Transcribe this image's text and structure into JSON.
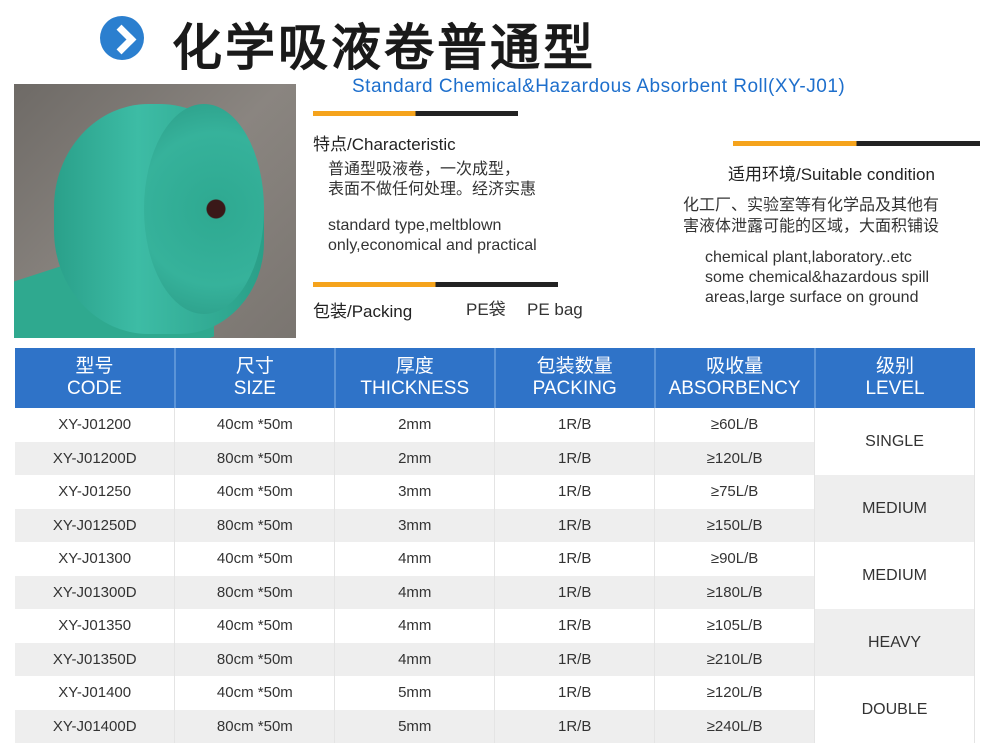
{
  "header": {
    "title": "化学吸液卷普通型",
    "subtitle": "Standard Chemical&Hazardous Absorbent Roll(XY-J01)",
    "accent": "#2b7fcf"
  },
  "characteristic": {
    "heading": "特点/Characteristic",
    "cn_lines": [
      "普通型吸液卷，一次成型，",
      "表面不做任何处理。经济实惠"
    ],
    "en_lines": [
      "standard type,meltblown",
      "only,economical and practical"
    ]
  },
  "packing": {
    "heading": "包装/Packing",
    "cn": "PE袋",
    "en": "PE bag"
  },
  "suitable": {
    "heading": "适用环境/Suitable condition",
    "cn_lines": [
      "化工厂、实验室等有化学品及其他有",
      "害液体泄露可能的区域，大面积铺设"
    ],
    "en_lines": [
      "chemical plant,laboratory..etc",
      "some chemical&hazardous spill",
      "areas,large surface on ground"
    ]
  },
  "table": {
    "headers": [
      [
        "型号",
        "CODE"
      ],
      [
        "尺寸",
        "SIZE"
      ],
      [
        "厚度",
        "THICKNESS"
      ],
      [
        "包装数量",
        "PACKING"
      ],
      [
        "吸收量",
        "ABSORBENCY"
      ],
      [
        "级别",
        "LEVEL"
      ]
    ],
    "rows": [
      [
        "XY-J01200",
        "40cm *50m",
        "2mm",
        "1R/B",
        "≥60L/B"
      ],
      [
        "XY-J01200D",
        "80cm *50m",
        "2mm",
        "1R/B",
        "≥120L/B"
      ],
      [
        "XY-J01250",
        "40cm *50m",
        "3mm",
        "1R/B",
        "≥75L/B"
      ],
      [
        "XY-J01250D",
        "80cm *50m",
        "3mm",
        "1R/B",
        "≥150L/B"
      ],
      [
        "XY-J01300",
        "40cm *50m",
        "4mm",
        "1R/B",
        "≥90L/B"
      ],
      [
        "XY-J01300D",
        "80cm *50m",
        "4mm",
        "1R/B",
        "≥180L/B"
      ],
      [
        "XY-J01350",
        "40cm *50m",
        "4mm",
        "1R/B",
        "≥105L/B"
      ],
      [
        "XY-J01350D",
        "80cm *50m",
        "4mm",
        "1R/B",
        "≥210L/B"
      ],
      [
        "XY-J01400",
        "40cm *50m",
        "5mm",
        "1R/B",
        "≥120L/B"
      ],
      [
        "XY-J01400D",
        "80cm *50m",
        "5mm",
        "1R/B",
        "≥240L/B"
      ]
    ],
    "levels": [
      "SINGLE",
      "MEDIUM",
      "MEDIUM",
      "HEAVY",
      "DOUBLE"
    ],
    "header_color": "#2f73c8"
  }
}
